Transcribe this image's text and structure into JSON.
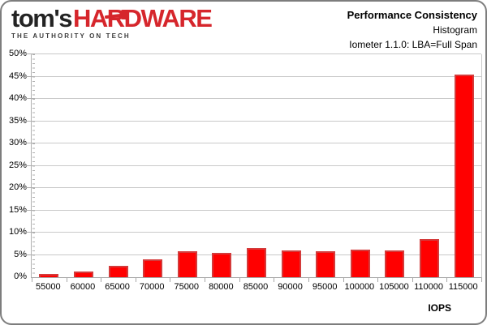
{
  "header": {
    "logo": {
      "brand_black": "tom's",
      "brand_red": "HARDWARE",
      "tagline": "THE AUTHORITY ON TECH",
      "red_color": "#d6262c",
      "black_color": "#232323"
    }
  },
  "chart_data": {
    "type": "bar",
    "title": "Performance Consistency",
    "subtitle": "Histogram",
    "test_label": "Iometer 1.1.0: LBA=Full Span",
    "xlabel": "IOPS",
    "ylabel": "",
    "categories": [
      "55000",
      "60000",
      "65000",
      "70000",
      "75000",
      "80000",
      "85000",
      "90000",
      "95000",
      "100000",
      "105000",
      "110000",
      "115000"
    ],
    "values": [
      0.8,
      1.3,
      2.5,
      4.0,
      5.9,
      5.5,
      6.5,
      6.0,
      5.8,
      6.1,
      6.0,
      8.5,
      45.4
    ],
    "ylim": [
      0,
      50
    ],
    "y_tick_step": 5,
    "y_tick_labels": [
      "0%",
      "5%",
      "10%",
      "15%",
      "20%",
      "25%",
      "30%",
      "35%",
      "40%",
      "45%",
      "50%"
    ],
    "grid": "horizontal",
    "legend": "none",
    "colors": {
      "bar_fill": "#ff0000",
      "bar_edge": "#d43b3b",
      "gridline": "#c9c9c9",
      "axis": "#a8a8a8"
    }
  }
}
